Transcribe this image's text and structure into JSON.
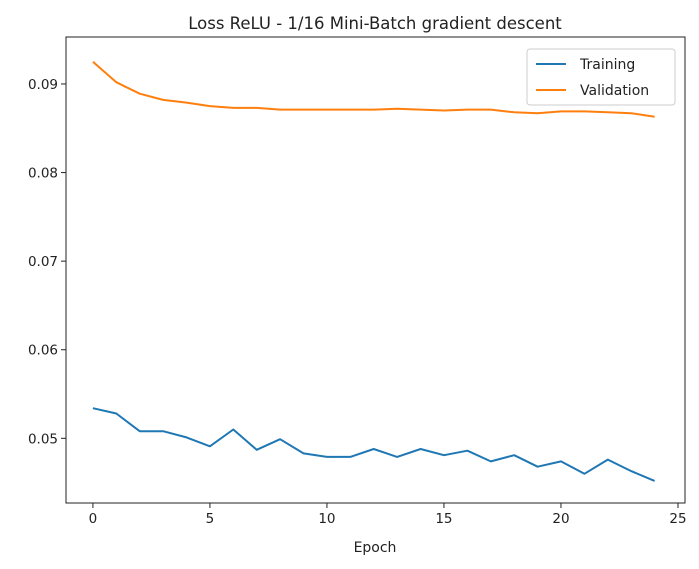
{
  "chart_data": {
    "type": "line",
    "title": "Loss ReLU - 1/16 Mini-Batch gradient descent",
    "xlabel": "Epoch",
    "ylabel": "",
    "xlim": [
      -1.15,
      25.3
    ],
    "ylim": [
      0.0427,
      0.0953
    ],
    "xticks": [
      0,
      5,
      10,
      15,
      20,
      25
    ],
    "xtick_labels": [
      "0",
      "5",
      "10",
      "15",
      "20",
      "25"
    ],
    "yticks": [
      0.05,
      0.06,
      0.07,
      0.08,
      0.09
    ],
    "ytick_labels": [
      "0.05",
      "0.06",
      "0.07",
      "0.08",
      "0.09"
    ],
    "grid": false,
    "legend_position": "top-right",
    "x": [
      0,
      1,
      2,
      3,
      4,
      5,
      6,
      7,
      8,
      9,
      10,
      11,
      12,
      13,
      14,
      15,
      16,
      17,
      18,
      19,
      20,
      21,
      22,
      23,
      24
    ],
    "series": [
      {
        "name": "Training",
        "color": "#1f77b4",
        "values": [
          0.0534,
          0.0528,
          0.0508,
          0.0508,
          0.0501,
          0.0491,
          0.051,
          0.0487,
          0.0499,
          0.0483,
          0.0479,
          0.0479,
          0.0488,
          0.0479,
          0.0488,
          0.0481,
          0.0486,
          0.0474,
          0.0481,
          0.0468,
          0.0474,
          0.046,
          0.0476,
          0.0463,
          0.0452
        ]
      },
      {
        "name": "Validation",
        "color": "#ff7f0e",
        "values": [
          0.0925,
          0.0902,
          0.0889,
          0.0882,
          0.0879,
          0.0875,
          0.0873,
          0.0873,
          0.0871,
          0.0871,
          0.0871,
          0.0871,
          0.0871,
          0.0872,
          0.0871,
          0.087,
          0.0871,
          0.0871,
          0.0868,
          0.0867,
          0.0869,
          0.0869,
          0.0868,
          0.0867,
          0.0863
        ]
      }
    ]
  }
}
